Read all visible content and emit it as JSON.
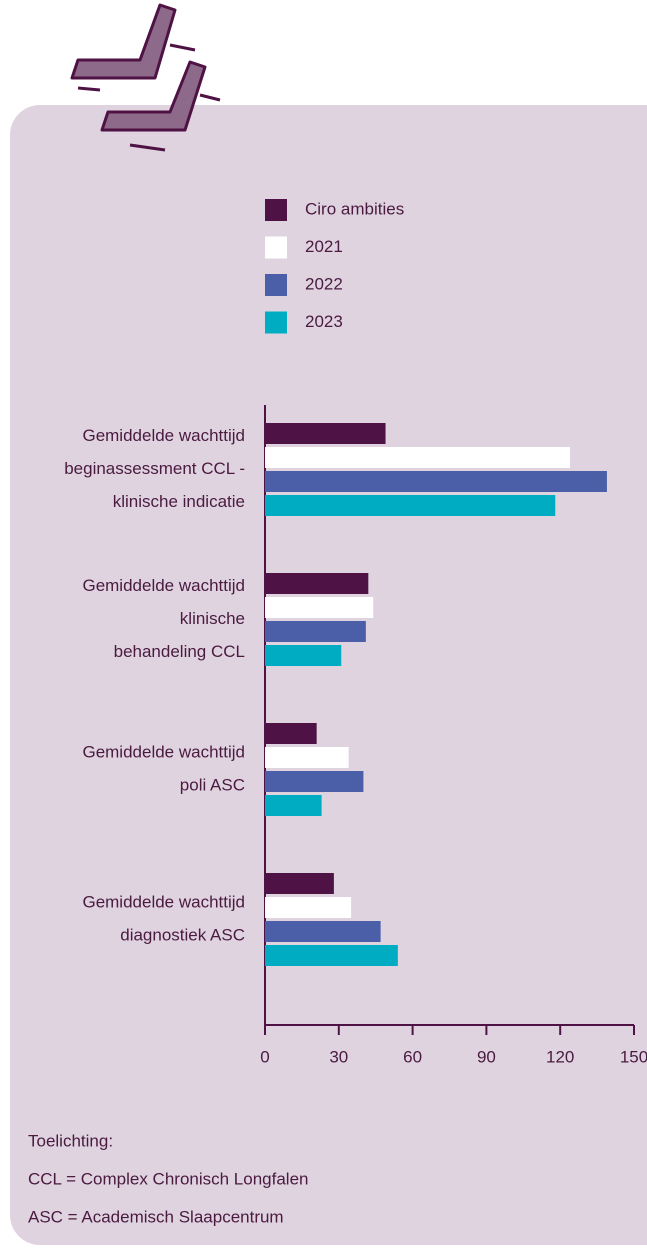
{
  "chart_data": {
    "type": "barh",
    "categories": [
      [
        "Gemiddelde wachttijd",
        "beginassessment CCL -",
        "klinische indicatie"
      ],
      [
        "Gemiddelde wachttijd",
        "klinische",
        "behandeling CCL"
      ],
      [
        "Gemiddelde wachttijd",
        "poli ASC"
      ],
      [
        "Gemiddelde wachttijd",
        "diagnostiek ASC"
      ]
    ],
    "series": [
      {
        "name": "Ciro ambities",
        "color": "#4f1244",
        "values": [
          49,
          42,
          21,
          28
        ]
      },
      {
        "name": "2021",
        "color": "#ffffff",
        "values": [
          124,
          44,
          34,
          35
        ]
      },
      {
        "name": "2022",
        "color": "#4a5fa8",
        "values": [
          139,
          41,
          40,
          47
        ]
      },
      {
        "name": "2023",
        "color": "#00acc1",
        "values": [
          118,
          31,
          23,
          54
        ]
      }
    ],
    "xlim": [
      0,
      150
    ],
    "xticks": [
      0,
      30,
      60,
      90,
      120,
      150
    ],
    "notes": [
      "Toelichting:",
      "CCL = Complex Chronisch Longfalen",
      "ASC = Academisch Slaapcentrum"
    ]
  }
}
